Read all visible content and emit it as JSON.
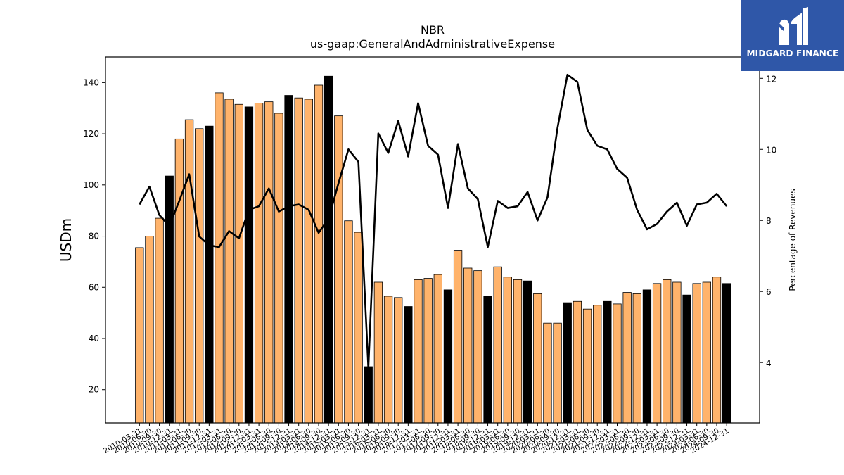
{
  "brand": {
    "name": "MIDGARD FINANCE",
    "logo_icon": "midgard-m-logo-icon",
    "bg_color": "#2f57a8"
  },
  "chart_data": {
    "type": "bar",
    "title": "NBR",
    "subtitle": "us-gaap:GeneralAndAdministrativeExpense",
    "ylabel": "USDm",
    "y2label": "Percentage of Revenues",
    "ylim": [
      7,
      150
    ],
    "y2lim": [
      2.3,
      12.6
    ],
    "yticks": [
      20,
      40,
      60,
      80,
      100,
      120,
      140
    ],
    "y2ticks": [
      4,
      6,
      8,
      10,
      12
    ],
    "grid": false,
    "colors": {
      "bar": "#ffb36b",
      "bar_q4": "#000000",
      "line": "#000000"
    },
    "categories": [
      "2010-03-31",
      "2010-06-30",
      "2010-09-30",
      "2010-12-31",
      "2011-03-31",
      "2011-06-30",
      "2011-09-30",
      "2011-12-31",
      "2012-03-31",
      "2012-06-30",
      "2012-09-30",
      "2012-12-31",
      "2013-03-31",
      "2013-06-30",
      "2013-09-30",
      "2013-12-31",
      "2014-03-31",
      "2014-06-30",
      "2014-09-30",
      "2014-12-31",
      "2015-03-31",
      "2015-06-30",
      "2015-09-30",
      "2015-12-31",
      "2016-03-31",
      "2016-06-30",
      "2016-09-30",
      "2016-12-31",
      "2017-03-31",
      "2017-06-30",
      "2017-09-30",
      "2017-12-31",
      "2018-03-31",
      "2018-06-30",
      "2018-09-30",
      "2018-12-31",
      "2019-03-31",
      "2019-06-30",
      "2019-09-30",
      "2019-12-31",
      "2020-03-31",
      "2020-06-30",
      "2020-09-30",
      "2020-12-31",
      "2021-03-31",
      "2021-06-30",
      "2021-09-30",
      "2021-12-31",
      "2022-03-31",
      "2022-06-30",
      "2022-09-30",
      "2022-12-31",
      "2023-03-31",
      "2023-06-30",
      "2023-09-30",
      "2023-12-31",
      "2024-03-31",
      "2024-06-30",
      "2024-09-30",
      "2024-12-31"
    ],
    "series": [
      {
        "type": "bar",
        "axis": "left",
        "values": [
          75.5,
          80,
          87,
          103.5,
          118,
          125.5,
          122,
          123,
          136,
          133.5,
          131.5,
          130.5,
          132,
          132.5,
          128,
          135,
          134,
          133.5,
          139,
          142.5,
          127,
          86,
          81.5,
          29,
          62,
          56.5,
          56,
          52.5,
          63,
          63.5,
          65,
          59,
          74.5,
          67.5,
          66.5,
          56.5,
          68,
          64,
          63,
          62.5,
          57.5,
          46,
          46,
          54,
          54.5,
          51.5,
          53,
          54.5,
          53.5,
          58,
          57.5,
          59,
          61.5,
          63,
          62,
          57,
          61.5,
          62,
          64,
          61.5
        ]
      },
      {
        "type": "line",
        "axis": "right",
        "values": [
          8.45,
          8.95,
          8.15,
          7.85,
          8.55,
          9.3,
          7.55,
          7.3,
          7.25,
          7.7,
          7.5,
          8.3,
          8.4,
          8.9,
          8.25,
          8.4,
          8.45,
          8.3,
          7.65,
          8.05,
          9.05,
          10.0,
          9.65,
          3.85,
          10.45,
          9.9,
          10.8,
          9.8,
          11.3,
          10.1,
          9.85,
          8.35,
          10.15,
          8.9,
          8.6,
          7.25,
          8.55,
          8.35,
          8.4,
          8.8,
          8.0,
          8.65,
          10.6,
          12.1,
          11.9,
          10.55,
          10.1,
          10.0,
          9.45,
          9.2,
          8.3,
          7.75,
          7.9,
          8.25,
          8.5,
          7.85,
          8.45,
          8.5,
          8.75,
          8.4
        ]
      }
    ]
  }
}
